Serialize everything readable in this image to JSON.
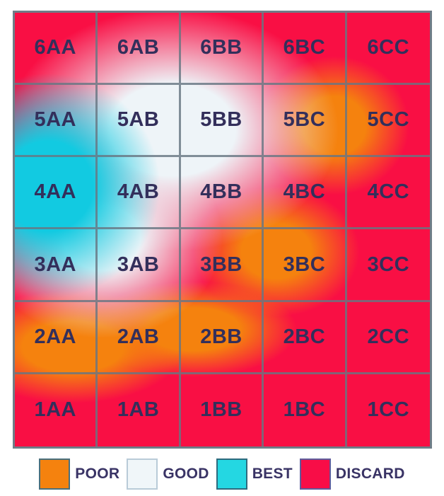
{
  "chart_data": {
    "type": "heatmap",
    "title": "",
    "rows": [
      "6",
      "5",
      "4",
      "3",
      "2",
      "1"
    ],
    "columns": [
      "AA",
      "AB",
      "BB",
      "BC",
      "CC"
    ],
    "cells": [
      {
        "label": "6AA",
        "zone": "good"
      },
      {
        "label": "6AB",
        "zone": "good"
      },
      {
        "label": "6BB",
        "zone": "good"
      },
      {
        "label": "6BC",
        "zone": "poor"
      },
      {
        "label": "6CC",
        "zone": "discard"
      },
      {
        "label": "5AA",
        "zone": "best"
      },
      {
        "label": "5AB",
        "zone": "good"
      },
      {
        "label": "5BB",
        "zone": "good"
      },
      {
        "label": "5BC",
        "zone": "poor"
      },
      {
        "label": "5CC",
        "zone": "discard"
      },
      {
        "label": "4AA",
        "zone": "best"
      },
      {
        "label": "4AB",
        "zone": "best"
      },
      {
        "label": "4BB",
        "zone": "good"
      },
      {
        "label": "4BC",
        "zone": "poor"
      },
      {
        "label": "4CC",
        "zone": "discard"
      },
      {
        "label": "3AA",
        "zone": "good"
      },
      {
        "label": "3AB",
        "zone": "good"
      },
      {
        "label": "3BB",
        "zone": "good"
      },
      {
        "label": "3BC",
        "zone": "poor"
      },
      {
        "label": "3CC",
        "zone": "discard"
      },
      {
        "label": "2AA",
        "zone": "poor"
      },
      {
        "label": "2AB",
        "zone": "poor"
      },
      {
        "label": "2BB",
        "zone": "poor"
      },
      {
        "label": "2BC",
        "zone": "discard"
      },
      {
        "label": "2CC",
        "zone": "discard"
      },
      {
        "label": "1AA",
        "zone": "poor"
      },
      {
        "label": "1AB",
        "zone": "discard"
      },
      {
        "label": "1BB",
        "zone": "discard"
      },
      {
        "label": "1BC",
        "zone": "discard"
      },
      {
        "label": "1CC",
        "zone": "discard"
      }
    ],
    "legend": [
      {
        "label": "POOR",
        "color": "#F5820E",
        "border": "#49707E"
      },
      {
        "label": "GOOD",
        "color": "#F0F6F9",
        "border": "#B9CBD8"
      },
      {
        "label": "BEST",
        "color": "#24D7E2",
        "border": "#2E6B7E"
      },
      {
        "label": "DISCARD",
        "color": "#F80D47",
        "border": "#5F5C9C"
      }
    ],
    "zone_colors": {
      "poor": "#F5820E",
      "good": "#EEF4F8",
      "best": "#12CAE1",
      "discard": "#F90F44"
    },
    "layout_hints": {
      "grid_line_color": "#687682",
      "cell_text_color": "#332F5B",
      "legend_text_color": "#393365",
      "legend_position": "bottom"
    }
  }
}
